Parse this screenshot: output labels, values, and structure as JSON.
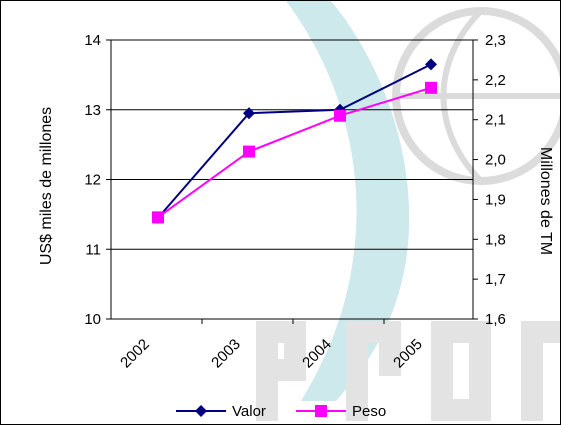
{
  "chart_data": {
    "type": "line",
    "categories": [
      "2002",
      "2003",
      "2004",
      "2005"
    ],
    "series": [
      {
        "name": "Valor",
        "axis": "left",
        "values": [
          11.45,
          12.95,
          13.0,
          13.65
        ],
        "color": "#000080",
        "marker": "diamond"
      },
      {
        "name": "Peso",
        "axis": "right",
        "values": [
          1.855,
          2.02,
          2.11,
          2.18
        ],
        "color": "#FF00FF",
        "marker": "square"
      }
    ],
    "ylabel_left": "US$ miles de millones",
    "ylabel_right": "Millones de TM",
    "ylim_left": [
      10,
      14
    ],
    "ylim_right": [
      1.6,
      2.3
    ],
    "yticks_left": [
      "10",
      "11",
      "12",
      "13",
      "14"
    ],
    "yticks_right": [
      "1,6",
      "1,7",
      "1,8",
      "1,9",
      "2,0",
      "2,1",
      "2,2",
      "2,3"
    ],
    "grid": true,
    "legend": "bottom",
    "watermark_text": "PROC"
  }
}
